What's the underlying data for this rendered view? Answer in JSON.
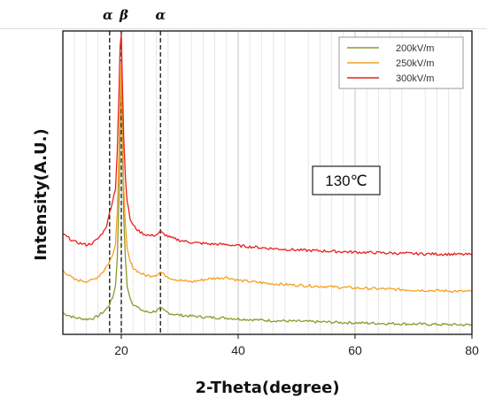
{
  "chart_data": {
    "type": "line",
    "xlabel": "2-Theta(degree)",
    "ylabel": "Intensity(A.U.)",
    "xlim": [
      10,
      80
    ],
    "xticks": [
      20,
      40,
      60,
      80
    ],
    "x_minor_grid": [
      12,
      14,
      16,
      18,
      22,
      24,
      26,
      28,
      30,
      32,
      34,
      36,
      38,
      42,
      44,
      46,
      48,
      52,
      54,
      56,
      58,
      62,
      64,
      66,
      68,
      72,
      74,
      76,
      78
    ],
    "ylim": [
      0,
      100
    ],
    "yaxis_values_shown": false,
    "grid": "vertical",
    "legend_position": "top-right",
    "annotation": "130℃",
    "reference_lines": [
      {
        "x": 18.0,
        "label": "α"
      },
      {
        "x": 20.0,
        "label": "β"
      },
      {
        "x": 26.7,
        "label": "α"
      }
    ],
    "series": [
      {
        "name": "200kV/m",
        "color": "#8a9a2a",
        "x": [
          10,
          12,
          14,
          15,
          16,
          17,
          17.5,
          18,
          18.5,
          19,
          19.3,
          19.6,
          19.8,
          20,
          20.2,
          20.4,
          20.7,
          21,
          21.5,
          22,
          23,
          24,
          25,
          26,
          26.7,
          27.5,
          28.5,
          30,
          32,
          35,
          38,
          40,
          45,
          50,
          60,
          70,
          80
        ],
        "y": [
          7,
          5.5,
          5,
          5.2,
          6,
          7.5,
          8.5,
          10,
          12,
          16,
          25,
          45,
          70,
          88,
          65,
          40,
          25,
          16,
          12,
          10,
          8.5,
          7.5,
          7.3,
          7.8,
          8.6,
          7.6,
          6.8,
          6.3,
          6,
          5.6,
          5.4,
          5.1,
          4.6,
          4.3,
          3.8,
          3.4,
          3.1
        ]
      },
      {
        "name": "250kV/m",
        "color": "#f5a020",
        "x": [
          10,
          12,
          14,
          15,
          16,
          17,
          17.5,
          18,
          18.5,
          19,
          19.3,
          19.6,
          19.8,
          20,
          20.2,
          20.4,
          20.7,
          21,
          21.5,
          22,
          23,
          24,
          25,
          26,
          26.7,
          27.5,
          28.5,
          30,
          32,
          35,
          38,
          40,
          45,
          50,
          60,
          70,
          80
        ],
        "y": [
          21,
          18,
          17.5,
          17.8,
          19,
          21,
          22.5,
          24,
          26,
          30,
          40,
          60,
          78,
          90,
          70,
          50,
          36,
          28,
          24,
          22,
          20.5,
          19.5,
          19.3,
          19.6,
          20.5,
          19.5,
          18.5,
          17.8,
          17.3,
          18.3,
          18.8,
          17.8,
          16.8,
          16.2,
          15.3,
          14.6,
          14.1
        ]
      },
      {
        "name": "300kV/m",
        "color": "#e8201c",
        "x": [
          10,
          12,
          14,
          15,
          16,
          17,
          17.5,
          18,
          18.5,
          19,
          19.3,
          19.6,
          19.8,
          20,
          20.2,
          20.4,
          20.7,
          21,
          21.5,
          22,
          23,
          24,
          25,
          26,
          26.7,
          27.5,
          28.5,
          30,
          32,
          35,
          38,
          40,
          45,
          50,
          60,
          70,
          80
        ],
        "y": [
          33,
          30.5,
          29.5,
          30,
          31.5,
          34,
          36,
          40,
          44,
          48,
          60,
          80,
          95,
          99,
          82,
          66,
          52,
          44,
          38,
          36,
          34,
          33,
          32.5,
          32.8,
          33.8,
          32.8,
          31.8,
          31,
          30.3,
          29.8,
          29.6,
          29.2,
          28.4,
          27.8,
          27.1,
          26.6,
          26.3
        ]
      }
    ]
  }
}
